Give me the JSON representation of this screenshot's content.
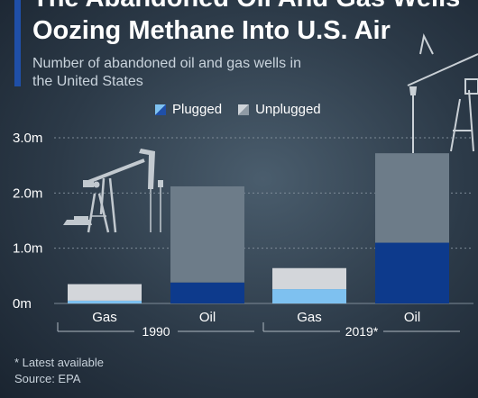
{
  "header": {
    "title_line1": "The Abandoned Oil And Gas Wells",
    "title_line2": "Oozing Methane Into U.S. Air",
    "subtitle": "Number of abandoned oil and gas wells in the United States"
  },
  "legend": {
    "plugged": "Plugged",
    "unplugged": "Unplugged"
  },
  "colors": {
    "accent": "#1f4fa8",
    "oil_plugged": "#0d3a8c",
    "oil_unplugged": "#6d7c89",
    "gas_plugged": "#7ec1f0",
    "gas_unplugged": "#d3d6da"
  },
  "chart_data": {
    "type": "bar",
    "stacked": true,
    "grid": true,
    "ylim": [
      0,
      3.0
    ],
    "yticks": [
      {
        "value": 0,
        "label": "0m"
      },
      {
        "value": 1.0,
        "label": "1.0m"
      },
      {
        "value": 2.0,
        "label": "2.0m"
      },
      {
        "value": 3.0,
        "label": "3.0m"
      }
    ],
    "categories": [
      "Gas",
      "Oil",
      "Gas",
      "Oil"
    ],
    "groups": [
      {
        "label": "1990",
        "categories": [
          "Gas",
          "Oil"
        ]
      },
      {
        "label": "2019*",
        "categories": [
          "Gas",
          "Oil"
        ]
      }
    ],
    "series": [
      {
        "name": "Plugged",
        "values": [
          0.05,
          0.38,
          0.26,
          1.1
        ]
      },
      {
        "name": "Unplugged",
        "values": [
          0.3,
          1.74,
          0.38,
          1.62
        ]
      }
    ]
  },
  "footnote": {
    "note": "* Latest available",
    "source": "Source: EPA"
  },
  "icons": [
    "oil-pumpjack-icon",
    "oil-pumpjack-icon"
  ]
}
